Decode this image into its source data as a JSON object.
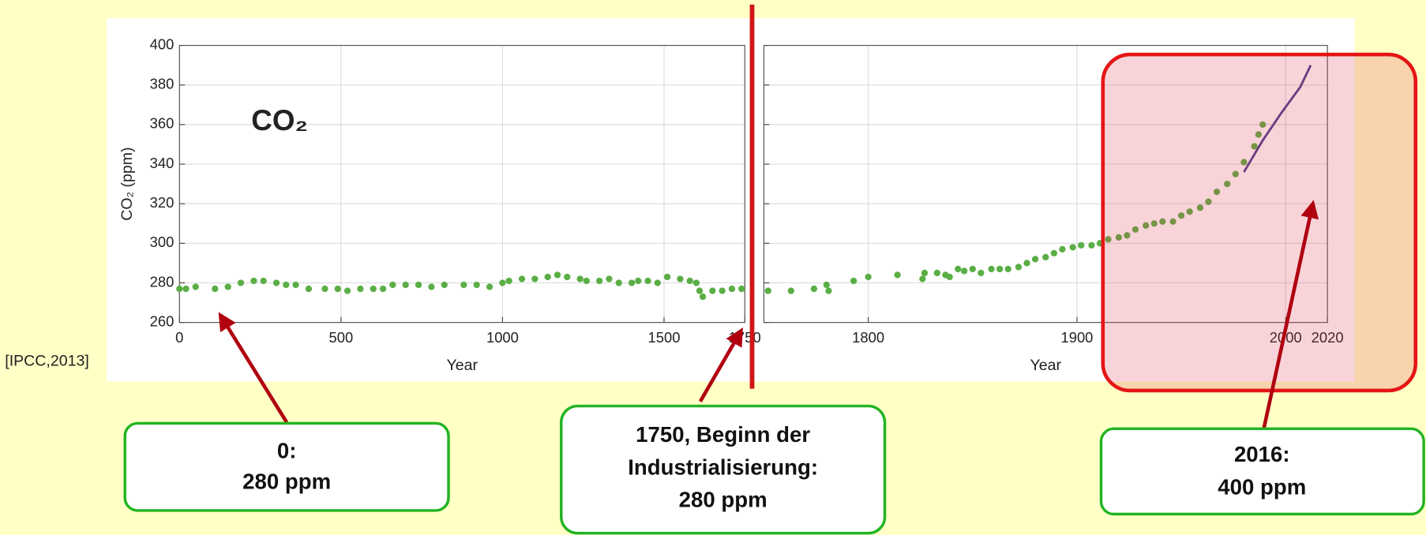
{
  "chart_data": [
    {
      "type": "scatter",
      "xlabel": "Year",
      "ylabel": "CO₂ (ppm)",
      "color": "#5aae45",
      "xlim": [
        0,
        1750
      ],
      "ylim": [
        260,
        400
      ],
      "xticks": [
        0,
        500,
        1000,
        1500,
        1750
      ],
      "yticks": [
        260,
        280,
        300,
        320,
        340,
        360,
        380,
        400
      ],
      "grid": true,
      "x": [
        0,
        20,
        50,
        110,
        150,
        190,
        230,
        260,
        300,
        330,
        360,
        400,
        450,
        490,
        520,
        560,
        600,
        630,
        660,
        700,
        740,
        780,
        820,
        880,
        920,
        960,
        1000,
        1020,
        1060,
        1100,
        1140,
        1170,
        1200,
        1240,
        1260,
        1300,
        1330,
        1360,
        1400,
        1420,
        1450,
        1480,
        1510,
        1550,
        1580,
        1600,
        1610,
        1620,
        1650,
        1680,
        1710,
        1740
      ],
      "values": [
        277,
        277,
        278,
        277,
        278,
        280,
        281,
        281,
        280,
        279,
        279,
        277,
        277,
        277,
        276,
        277,
        277,
        277,
        279,
        279,
        279,
        278,
        279,
        279,
        279,
        278,
        280,
        281,
        282,
        282,
        283,
        284,
        283,
        282,
        281,
        281,
        282,
        280,
        280,
        281,
        281,
        280,
        283,
        282,
        281,
        280,
        276,
        273,
        276,
        276,
        277,
        277
      ]
    },
    {
      "type": "scatter",
      "xlabel": "Year",
      "color": "#5aae45",
      "line_color": "#4b3f8f",
      "xlim": [
        1750,
        2020
      ],
      "ylim": [
        260,
        400
      ],
      "xticks": [
        1800,
        1900,
        2000,
        2020
      ],
      "yticks": [
        260,
        280,
        300,
        320,
        340,
        360,
        380,
        400
      ],
      "grid": true,
      "x": [
        1752,
        1763,
        1774,
        1780,
        1781,
        1793,
        1800,
        1814,
        1826,
        1827,
        1833,
        1837,
        1839,
        1843,
        1846,
        1850,
        1854,
        1859,
        1863,
        1867,
        1872,
        1876,
        1880,
        1885,
        1889,
        1893,
        1898,
        1902,
        1907,
        1911,
        1915,
        1920,
        1924,
        1928,
        1933,
        1937,
        1941,
        1946,
        1950,
        1954,
        1959,
        1963,
        1967,
        1972,
        1976,
        1980,
        1985,
        1987,
        1989
      ],
      "values": [
        276,
        276,
        277,
        279,
        276,
        281,
        283,
        284,
        282,
        285,
        285,
        284,
        283,
        287,
        286,
        287,
        285,
        287,
        287,
        287,
        288,
        290,
        292,
        293,
        295,
        297,
        298,
        299,
        299,
        300,
        302,
        303,
        304,
        307,
        309,
        310,
        311,
        311,
        314,
        316,
        318,
        321,
        326,
        330,
        335,
        341,
        349,
        355,
        360
      ],
      "line_x": [
        1980,
        1989,
        1998,
        2007,
        2012
      ],
      "line_values": [
        336,
        352,
        366,
        379,
        390
      ]
    }
  ],
  "annotations": {
    "co2_label": "CO₂",
    "source": "[IPCC,2013]",
    "boxes": [
      {
        "lines": [
          "0:",
          "280 ppm"
        ]
      },
      {
        "lines": [
          "1750, Beginn der",
          "Industrialisierung:",
          "280 ppm"
        ]
      },
      {
        "lines": [
          "2016:",
          "400 ppm"
        ]
      }
    ]
  }
}
